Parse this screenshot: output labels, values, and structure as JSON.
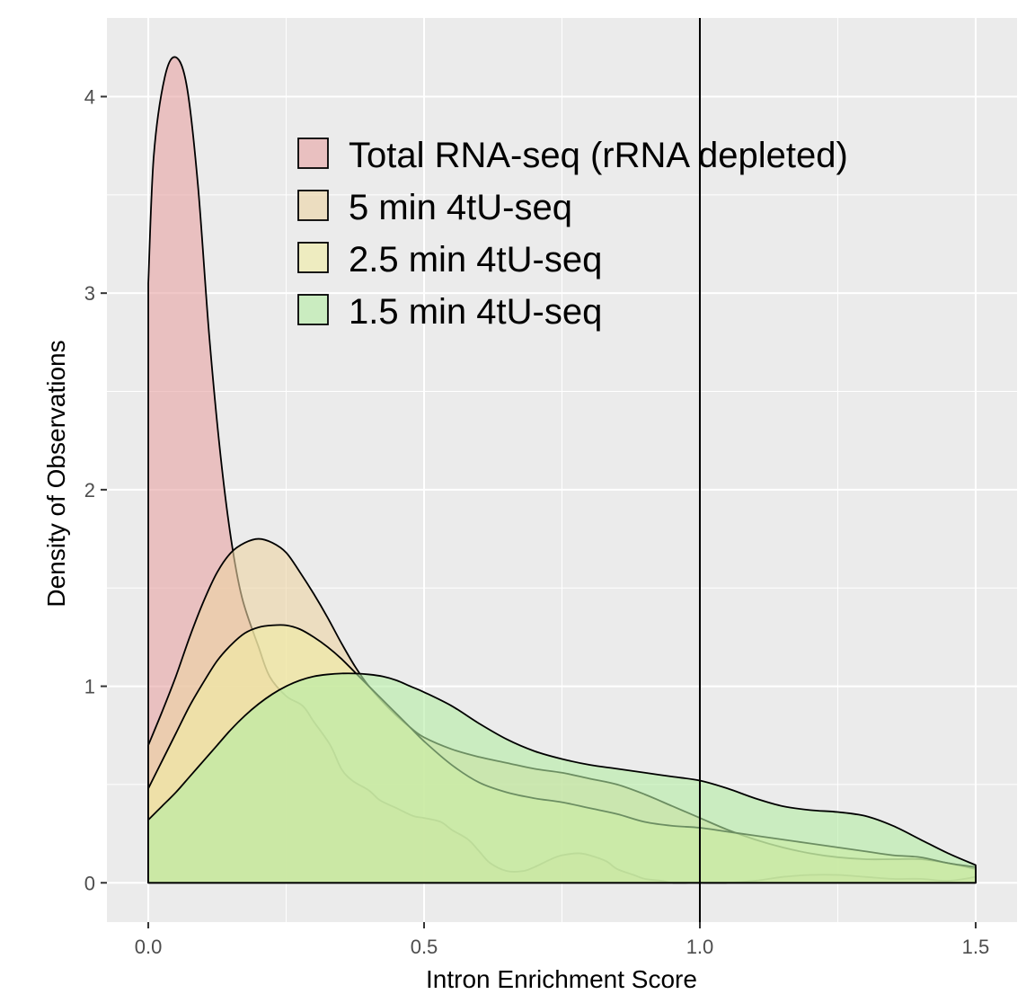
{
  "chart_data": {
    "type": "area",
    "subtype": "density",
    "title": "",
    "xlabel": "Intron Enrichment Score",
    "ylabel": "Density of Observations",
    "xlim": [
      -0.075,
      1.575
    ],
    "ylim": [
      -0.2,
      4.4
    ],
    "x_ticks": [
      0.0,
      0.5,
      1.0,
      1.5
    ],
    "x_tick_labels": [
      "0.0",
      "0.5",
      "1.0",
      "1.5"
    ],
    "y_ticks": [
      0,
      1,
      2,
      3,
      4
    ],
    "y_tick_labels": [
      "0",
      "1",
      "2",
      "3",
      "4"
    ],
    "grid": true,
    "panel_background": "#ebebeb",
    "grid_color": "#ffffff",
    "legend_position": "top-center",
    "reference_lines": [
      {
        "orientation": "vertical",
        "x": 1.0,
        "color": "#000000"
      }
    ],
    "series": [
      {
        "name": "Total RNA-seq (rRNA depleted)",
        "color": "#e8a4a4",
        "x": [
          0.0,
          0.01,
          0.03,
          0.05,
          0.07,
          0.09,
          0.11,
          0.13,
          0.15,
          0.17,
          0.2,
          0.22,
          0.25,
          0.28,
          0.3,
          0.33,
          0.35,
          0.37,
          0.4,
          0.42,
          0.45,
          0.48,
          0.5,
          0.53,
          0.55,
          0.58,
          0.6,
          0.62,
          0.65,
          0.68,
          0.7,
          0.73,
          0.75,
          0.78,
          0.8,
          0.83,
          0.85,
          0.88,
          0.9,
          0.93,
          0.95,
          0.98,
          1.0,
          1.05,
          1.1,
          1.15,
          1.2,
          1.25,
          1.3,
          1.35,
          1.4,
          1.45,
          1.5
        ],
        "values": [
          3.05,
          3.7,
          4.1,
          4.2,
          4.05,
          3.55,
          2.8,
          2.2,
          1.75,
          1.45,
          1.2,
          1.05,
          0.95,
          0.9,
          0.82,
          0.7,
          0.58,
          0.52,
          0.47,
          0.42,
          0.38,
          0.34,
          0.33,
          0.31,
          0.27,
          0.22,
          0.16,
          0.1,
          0.06,
          0.06,
          0.08,
          0.12,
          0.14,
          0.15,
          0.14,
          0.11,
          0.07,
          0.04,
          0.02,
          0.01,
          0.0,
          0.0,
          0.0,
          0.0,
          0.01,
          0.03,
          0.04,
          0.04,
          0.03,
          0.02,
          0.02,
          0.01,
          0.03
        ]
      },
      {
        "name": "5 min 4tU-seq",
        "color": "#ecd4a4",
        "x": [
          0.0,
          0.025,
          0.05,
          0.075,
          0.1,
          0.125,
          0.15,
          0.175,
          0.2,
          0.225,
          0.25,
          0.275,
          0.3,
          0.325,
          0.35,
          0.375,
          0.4,
          0.425,
          0.45,
          0.475,
          0.5,
          0.55,
          0.6,
          0.65,
          0.7,
          0.75,
          0.8,
          0.85,
          0.9,
          0.95,
          1.0,
          1.05,
          1.1,
          1.15,
          1.2,
          1.25,
          1.3,
          1.35,
          1.4,
          1.45,
          1.5
        ],
        "values": [
          0.7,
          0.87,
          1.05,
          1.25,
          1.43,
          1.58,
          1.68,
          1.73,
          1.75,
          1.73,
          1.68,
          1.58,
          1.47,
          1.35,
          1.22,
          1.1,
          1.0,
          0.92,
          0.85,
          0.79,
          0.74,
          0.68,
          0.64,
          0.61,
          0.58,
          0.56,
          0.53,
          0.5,
          0.45,
          0.39,
          0.33,
          0.27,
          0.22,
          0.18,
          0.15,
          0.13,
          0.12,
          0.12,
          0.12,
          0.1,
          0.07
        ]
      },
      {
        "name": "2.5 min 4tU-seq",
        "color": "#f0eca4",
        "x": [
          0.0,
          0.025,
          0.05,
          0.075,
          0.1,
          0.125,
          0.15,
          0.175,
          0.2,
          0.225,
          0.25,
          0.275,
          0.3,
          0.325,
          0.35,
          0.375,
          0.4,
          0.425,
          0.45,
          0.475,
          0.5,
          0.55,
          0.6,
          0.65,
          0.7,
          0.75,
          0.8,
          0.85,
          0.9,
          0.95,
          1.0,
          1.05,
          1.1,
          1.15,
          1.2,
          1.25,
          1.3,
          1.35,
          1.4,
          1.45,
          1.5
        ],
        "values": [
          0.48,
          0.62,
          0.76,
          0.9,
          1.02,
          1.13,
          1.21,
          1.27,
          1.3,
          1.31,
          1.31,
          1.29,
          1.25,
          1.2,
          1.14,
          1.07,
          1.0,
          0.93,
          0.86,
          0.79,
          0.72,
          0.6,
          0.51,
          0.46,
          0.43,
          0.41,
          0.38,
          0.35,
          0.31,
          0.29,
          0.28,
          0.26,
          0.24,
          0.22,
          0.2,
          0.18,
          0.16,
          0.14,
          0.13,
          0.1,
          0.08
        ]
      },
      {
        "name": "1.5 min 4tU-seq",
        "color": "#b4eca4",
        "x": [
          0.0,
          0.025,
          0.05,
          0.075,
          0.1,
          0.125,
          0.15,
          0.175,
          0.2,
          0.225,
          0.25,
          0.275,
          0.3,
          0.325,
          0.35,
          0.375,
          0.4,
          0.425,
          0.45,
          0.475,
          0.5,
          0.55,
          0.6,
          0.65,
          0.7,
          0.75,
          0.8,
          0.85,
          0.9,
          0.95,
          1.0,
          1.05,
          1.1,
          1.15,
          1.2,
          1.25,
          1.3,
          1.35,
          1.4,
          1.45,
          1.5
        ],
        "values": [
          0.32,
          0.39,
          0.46,
          0.54,
          0.62,
          0.7,
          0.78,
          0.85,
          0.91,
          0.96,
          1.0,
          1.03,
          1.05,
          1.06,
          1.065,
          1.065,
          1.06,
          1.05,
          1.03,
          1.0,
          0.97,
          0.9,
          0.81,
          0.73,
          0.67,
          0.63,
          0.6,
          0.58,
          0.56,
          0.54,
          0.52,
          0.48,
          0.43,
          0.39,
          0.37,
          0.36,
          0.34,
          0.29,
          0.22,
          0.15,
          0.09
        ]
      }
    ]
  }
}
